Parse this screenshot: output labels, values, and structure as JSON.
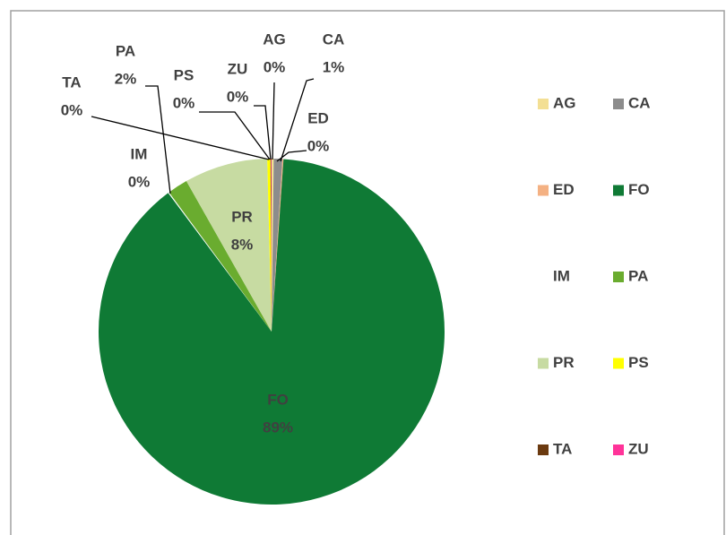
{
  "chart_data": {
    "type": "pie",
    "categories": [
      "AG",
      "CA",
      "ED",
      "FO",
      "IM",
      "PA",
      "PR",
      "PS",
      "TA",
      "ZU"
    ],
    "values": [
      0.2,
      0.8,
      0.1,
      88.7,
      0.1,
      1.9,
      7.8,
      0.3,
      0.05,
      0.05
    ],
    "value_labels": [
      "0%",
      "1%",
      "0%",
      "89%",
      "0%",
      "2%",
      "8%",
      "0%",
      "0%",
      "0%"
    ],
    "colors": [
      "#f3df94",
      "#8c8c8c",
      "#f4b183",
      "#0f7a35",
      "#ffffff",
      "#6aac2f",
      "#c7dba2",
      "#ffff00",
      "#6b3a10",
      "#ff3399"
    ],
    "legend": "right"
  }
}
